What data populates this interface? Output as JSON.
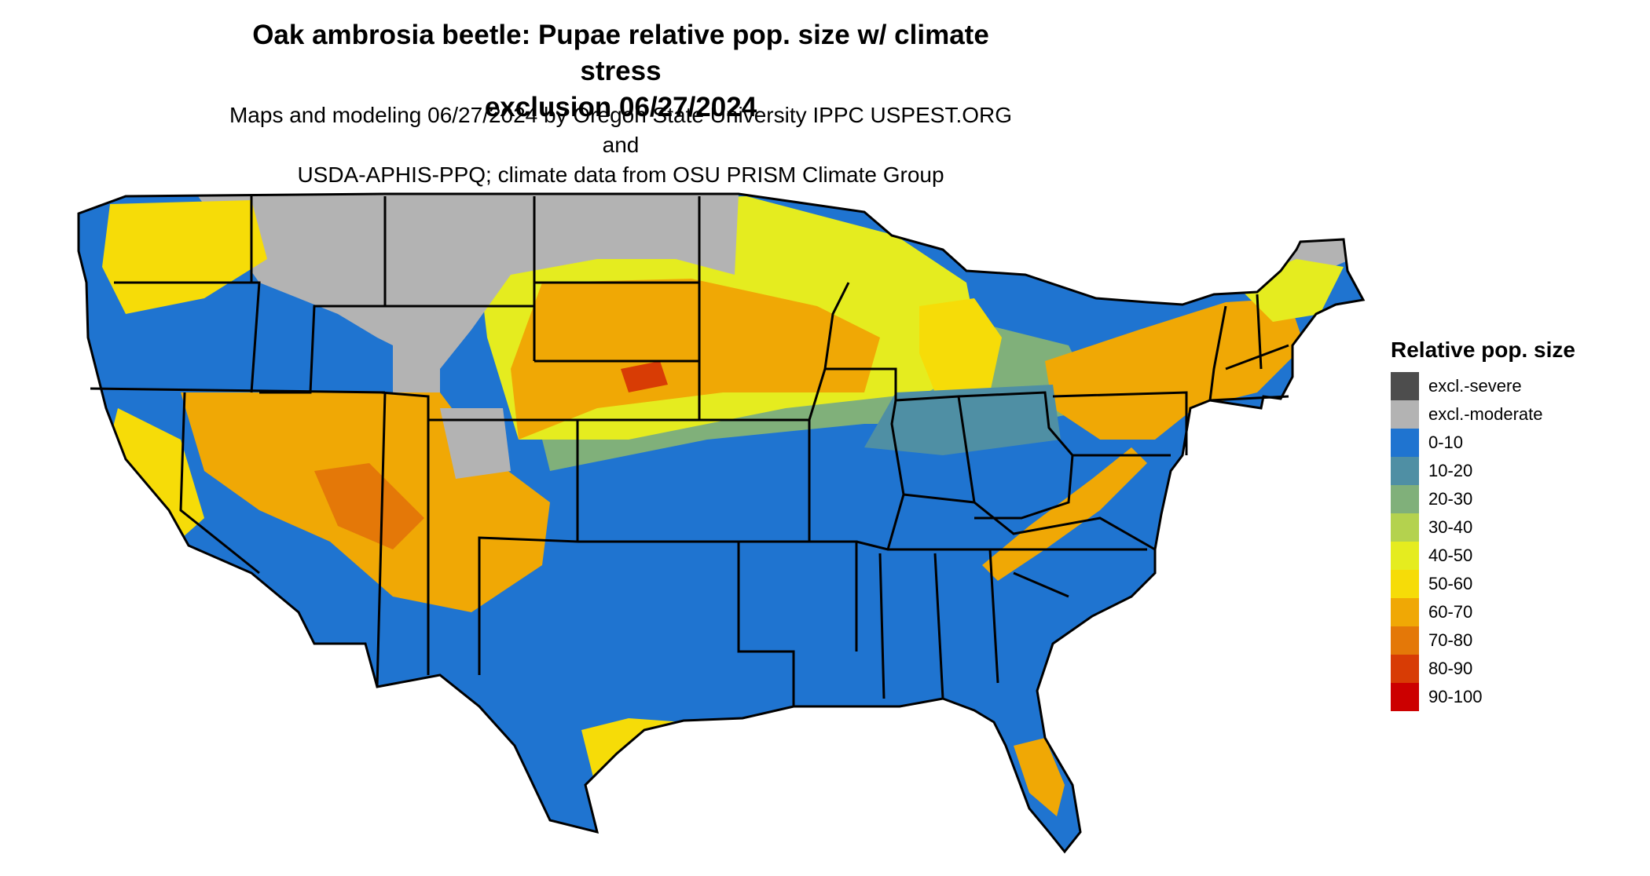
{
  "title_line1": "Oak ambrosia beetle: Pupae relative pop. size w/ climate stress",
  "title_line2": "exclusion 06/27/2024",
  "subtitle_line1": "Maps and modeling 06/27/2024 by Oregon State University IPPC USPEST.ORG and",
  "subtitle_line2": "USDA-APHIS-PPQ; climate data from OSU PRISM Climate Group",
  "legend": {
    "title": "Relative pop. size",
    "items": [
      {
        "label": "excl.-severe",
        "color": "#4d4d4d"
      },
      {
        "label": "excl.-moderate",
        "color": "#b3b3b3"
      },
      {
        "label": "0-10",
        "color": "#1f74d0"
      },
      {
        "label": "10-20",
        "color": "#4f8fa4"
      },
      {
        "label": "20-30",
        "color": "#80b07a"
      },
      {
        "label": "30-40",
        "color": "#b4d24e"
      },
      {
        "label": "40-50",
        "color": "#e5ec1f"
      },
      {
        "label": "50-60",
        "color": "#f6dc08"
      },
      {
        "label": "60-70",
        "color": "#f0a805"
      },
      {
        "label": "70-80",
        "color": "#e47808"
      },
      {
        "label": "80-90",
        "color": "#d83c05"
      },
      {
        "label": "90-100",
        "color": "#cc0000"
      }
    ]
  }
}
